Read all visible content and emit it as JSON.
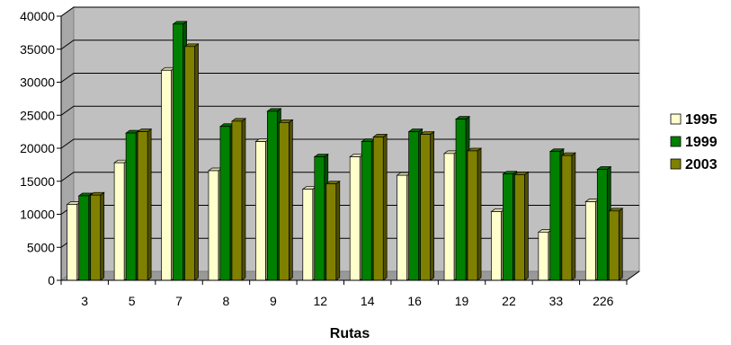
{
  "chart_data": {
    "type": "bar",
    "title": "",
    "xlabel": "Rutas",
    "ylabel": "",
    "categories": [
      "3",
      "5",
      "7",
      "8",
      "9",
      "12",
      "14",
      "16",
      "19",
      "22",
      "33",
      "226"
    ],
    "series": [
      {
        "name": "1995",
        "color": "#FFFFCC",
        "values": [
          11500,
          17800,
          31800,
          16600,
          21000,
          13800,
          18700,
          15900,
          19200,
          10400,
          7300,
          11900
        ]
      },
      {
        "name": "1999",
        "color": "#008000",
        "values": [
          12800,
          22300,
          38800,
          23300,
          25600,
          18700,
          21000,
          22500,
          24400,
          16100,
          19500,
          16800
        ]
      },
      {
        "name": "2003",
        "color": "#808000",
        "values": [
          12900,
          22500,
          35400,
          24100,
          23900,
          14600,
          21700,
          22100,
          19600,
          16000,
          18900,
          10500
        ]
      }
    ],
    "ylim": [
      0,
      40000
    ],
    "yticks": [
      0,
      5000,
      10000,
      15000,
      20000,
      25000,
      30000,
      35000,
      40000
    ],
    "grid": true,
    "legend_position": "right",
    "colors": {
      "wall": "#C0C0C0",
      "floor": "#999999",
      "grid": "#000000"
    }
  }
}
